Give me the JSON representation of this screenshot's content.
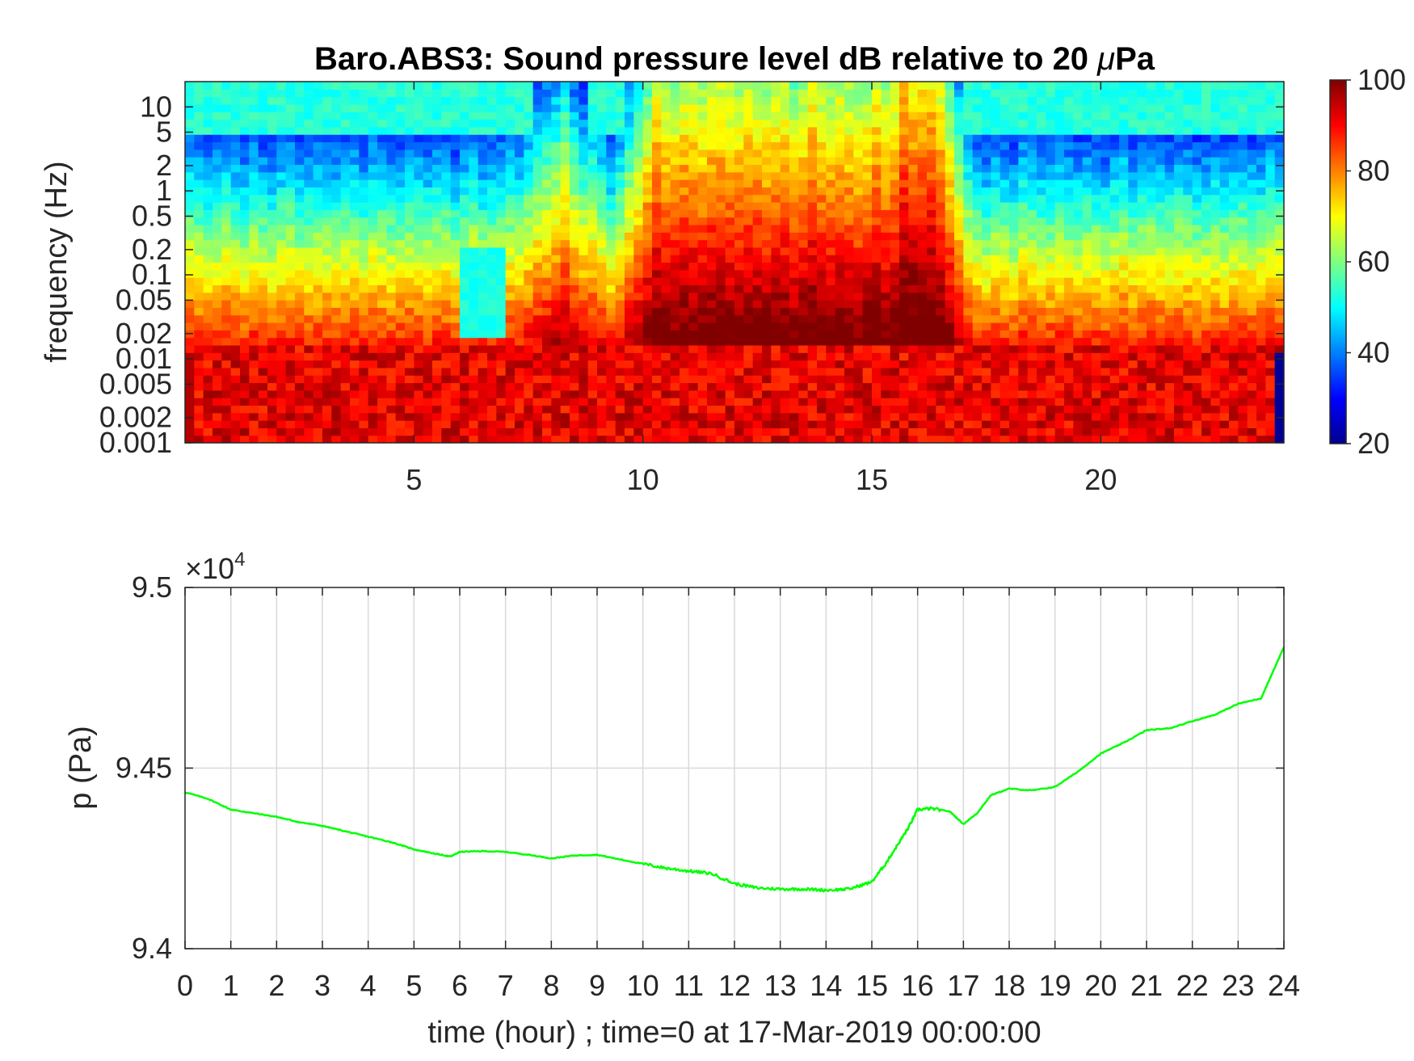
{
  "chart_data": [
    {
      "type": "heatmap",
      "title": "Baro.ABS3: Sound pressure level dB relative to 20 μPa",
      "title_parts": {
        "text": "Baro.ABS3: Sound pressure level dB relative to 20 ",
        "mu": "μ",
        "unit": "Pa"
      },
      "xlabel": "",
      "ylabel": "frequency (Hz)",
      "xlim": [
        0,
        24
      ],
      "ylim": [
        0.001,
        20
      ],
      "yscale": "log",
      "x_ticks": [
        5,
        10,
        15,
        20
      ],
      "x_tick_labels": [
        "5",
        "10",
        "15",
        "20"
      ],
      "y_ticks": [
        0.001,
        0.002,
        0.005,
        0.01,
        0.02,
        0.05,
        0.1,
        0.2,
        0.5,
        1,
        2,
        5,
        10
      ],
      "y_tick_labels": [
        "0.001",
        "0.002",
        "0.005",
        "0.01",
        "0.02",
        "0.05",
        "0.1",
        "0.2",
        "0.5",
        "1",
        "2",
        "5",
        "10"
      ],
      "grid": false,
      "colormap": "jet",
      "colorbar": {
        "ticks": [
          20,
          40,
          60,
          80,
          100
        ],
        "tick_labels": [
          "20",
          "40",
          "60",
          "80",
          "100"
        ],
        "range": [
          20,
          100
        ]
      },
      "activity_hours": {
        "quiet_window": [
          6,
          7
        ],
        "peak_window": [
          10,
          17
        ],
        "strongest_hour": 16
      }
    },
    {
      "type": "line",
      "title": "",
      "xlabel": "time (hour) ; time=0 at 17-Mar-2019 00:00:00",
      "ylabel": "p (Pa)",
      "xlim": [
        0,
        24
      ],
      "ylim": [
        94000,
        95000
      ],
      "y_exponent_label": {
        "base": "×10",
        "exp": "4"
      },
      "x_ticks": [
        0,
        1,
        2,
        3,
        4,
        5,
        6,
        7,
        8,
        9,
        10,
        11,
        12,
        13,
        14,
        15,
        16,
        17,
        18,
        19,
        20,
        21,
        22,
        23,
        24
      ],
      "x_tick_labels": [
        "0",
        "1",
        "2",
        "3",
        "4",
        "5",
        "6",
        "7",
        "8",
        "9",
        "10",
        "11",
        "12",
        "13",
        "14",
        "15",
        "16",
        "17",
        "18",
        "19",
        "20",
        "21",
        "22",
        "23",
        "24"
      ],
      "y_ticks": [
        94000,
        94500,
        95000
      ],
      "y_tick_labels": [
        "9.4",
        "9.45",
        "9.5"
      ],
      "grid": true,
      "series": [
        {
          "color": "#00ff00",
          "x": [
            0,
            0.5,
            1,
            1.5,
            2,
            2.5,
            3,
            3.5,
            4,
            4.5,
            5,
            5.5,
            5.8,
            6,
            6.5,
            7,
            7.5,
            8,
            8.5,
            9,
            9.5,
            10,
            10.5,
            11,
            11.5,
            12,
            12.5,
            13,
            13.5,
            14,
            14.5,
            15,
            15.3,
            15.6,
            15.8,
            16,
            16.3,
            16.7,
            17,
            17.3,
            17.6,
            18,
            18.5,
            19,
            19.5,
            20,
            20.5,
            21,
            21.5,
            22,
            22.5,
            23,
            23.5,
            24
          ],
          "y": [
            94433,
            94415,
            94385,
            94375,
            94365,
            94350,
            94340,
            94325,
            94310,
            94295,
            94275,
            94262,
            94255,
            94268,
            94270,
            94268,
            94260,
            94250,
            94258,
            94260,
            94247,
            94235,
            94223,
            94215,
            94208,
            94180,
            94168,
            94165,
            94165,
            94162,
            94165,
            94185,
            94235,
            94295,
            94335,
            94385,
            94388,
            94380,
            94345,
            94375,
            94425,
            94443,
            94438,
            94448,
            94490,
            94540,
            94570,
            94605,
            94610,
            94630,
            94648,
            94678,
            94693,
            94835
          ]
        }
      ]
    }
  ]
}
